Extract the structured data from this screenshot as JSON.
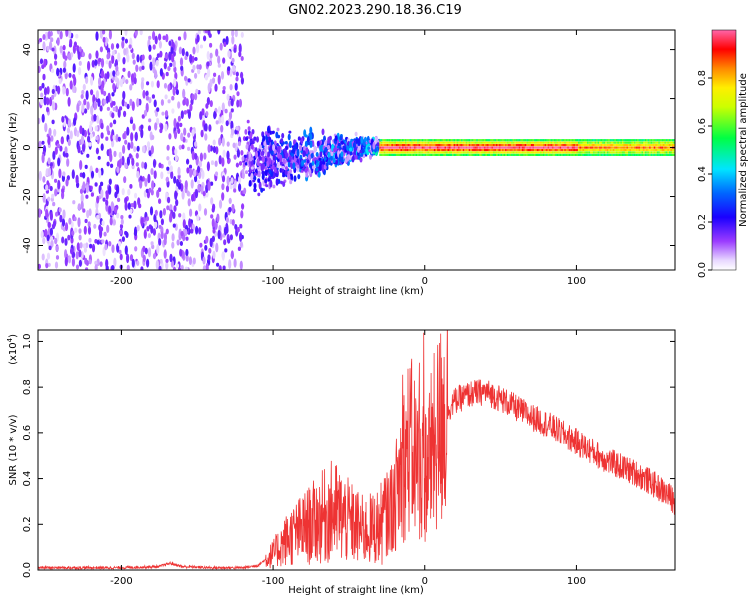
{
  "title": "GN02.2023.290.18.36.C19",
  "chart_data": [
    {
      "type": "heatmap",
      "xlabel": "Height of straight line (km)",
      "ylabel": "Frequency (Hz)",
      "xlim": [
        -255,
        165
      ],
      "ylim": [
        -50,
        48
      ],
      "x_ticks": [
        -200,
        -100,
        0,
        100
      ],
      "y_ticks": [
        -40,
        -20,
        0,
        20,
        40
      ],
      "colorbar": {
        "label": "Normalized spectral amplitude",
        "range": [
          0.0,
          1.0
        ],
        "ticks": [
          0.0,
          0.2,
          0.4,
          0.6,
          0.8
        ],
        "tick_labels": [
          "0.0",
          "0.2",
          "0.4",
          "0.6",
          "0.8"
        ],
        "colormap": [
          "#ffffff",
          "#c89cff",
          "#7a00ff",
          "#0000ff",
          "#00ccff",
          "#00ff66",
          "#aaff00",
          "#ffff00",
          "#ff8800",
          "#ff0000",
          "#ff66aa"
        ]
      },
      "regions": [
        {
          "x_range": [
            -255,
            -120
          ],
          "freq_spread": [
            -50,
            48
          ],
          "amplitude": [
            0.0,
            0.15
          ],
          "pattern": "diffuse noise"
        },
        {
          "x_range": [
            -120,
            -30
          ],
          "freq_spread": [
            -25,
            12
          ],
          "amplitude": [
            0.05,
            0.5
          ],
          "pattern": "scattered signal"
        },
        {
          "x_range": [
            -30,
            165
          ],
          "freq_spread": [
            -3,
            3
          ],
          "amplitude": [
            0.5,
            1.0
          ],
          "pattern": "narrow band centered at 0 Hz"
        }
      ]
    },
    {
      "type": "line",
      "xlabel": "Height of straight line (km)",
      "ylabel": "SNR (10 * v/v)",
      "y_scale_label": "(x10",
      "y_scale_exp": "4",
      "y_scale_close": ")",
      "xlim": [
        -255,
        165
      ],
      "ylim": [
        0,
        1.05
      ],
      "x_ticks": [
        -200,
        -100,
        0,
        100
      ],
      "y_ticks": [
        0.0,
        0.2,
        0.4,
        0.6,
        0.8,
        1.0
      ],
      "y_tick_labels": [
        "0.0",
        "0.2",
        "0.4",
        "0.6",
        "0.8",
        "1.0"
      ],
      "color": "#ee3333",
      "series": [
        {
          "x": [
            -255,
            -230,
            -200,
            -175,
            -168,
            -160,
            -140,
            -120,
            -110,
            -100,
            -90,
            -80,
            -70,
            -60,
            -50,
            -40,
            -30,
            -20,
            -15,
            -10,
            -5,
            0,
            5,
            10,
            15,
            20,
            30,
            40,
            50,
            60,
            70,
            80,
            90,
            100,
            110,
            120,
            130,
            140,
            150,
            160,
            165
          ],
          "y": [
            0.01,
            0.01,
            0.01,
            0.015,
            0.03,
            0.015,
            0.01,
            0.01,
            0.02,
            0.07,
            0.14,
            0.18,
            0.22,
            0.26,
            0.21,
            0.17,
            0.19,
            0.3,
            0.45,
            0.55,
            0.48,
            0.42,
            0.52,
            0.62,
            0.7,
            0.74,
            0.77,
            0.78,
            0.75,
            0.71,
            0.67,
            0.64,
            0.6,
            0.56,
            0.52,
            0.48,
            0.45,
            0.42,
            0.38,
            0.33,
            0.3
          ]
        }
      ]
    }
  ]
}
